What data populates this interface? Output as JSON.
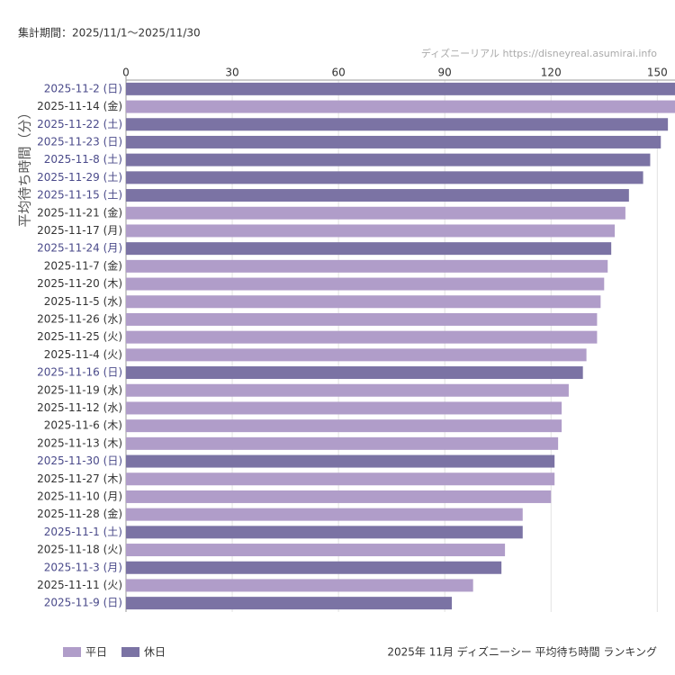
{
  "chart_data": {
    "type": "hbar",
    "period": "集計期間：2025/11/1〜2025/11/30",
    "credit": "ディズニーリアル https://disneyreal.asumirai.info",
    "title": "2025年 11月 ディズニーシー 平均待ち時間 ランキング",
    "y_label": "平均待ち時間（分）",
    "categories": [
      "2025-11-2 (日)",
      "2025-11-14 (金)",
      "2025-11-22 (土)",
      "2025-11-23 (日)",
      "2025-11-8 (土)",
      "2025-11-29 (土)",
      "2025-11-15 (土)",
      "2025-11-21 (金)",
      "2025-11-17 (月)",
      "2025-11-24 (月)",
      "2025-11-7 (金)",
      "2025-11-20 (木)",
      "2025-11-5 (水)",
      "2025-11-26 (水)",
      "2025-11-25 (火)",
      "2025-11-4 (火)",
      "2025-11-16 (日)",
      "2025-11-19 (水)",
      "2025-11-12 (水)",
      "2025-11-6 (木)",
      "2025-11-13 (木)",
      "2025-11-30 (日)",
      "2025-11-27 (木)",
      "2025-11-10 (月)",
      "2025-11-28 (金)",
      "2025-11-1 (土)",
      "2025-11-18 (火)",
      "2025-11-3 (月)",
      "2025-11-11 (火)",
      "2025-11-9 (日)"
    ],
    "series": [
      {
        "name": "平日",
        "color": "#b09dc9",
        "label_color": "#333333",
        "values": [
          null,
          156,
          null,
          null,
          null,
          null,
          null,
          141,
          138,
          null,
          136,
          135,
          134,
          133,
          133,
          130,
          null,
          125,
          123,
          123,
          122,
          null,
          121,
          120,
          112,
          null,
          107,
          null,
          98,
          null
        ]
      },
      {
        "name": "休日",
        "color": "#7b73a4",
        "label_color": "#4a4a8a",
        "values": [
          157,
          null,
          153,
          151,
          148,
          146,
          142,
          null,
          null,
          137,
          null,
          null,
          null,
          null,
          null,
          null,
          129,
          null,
          null,
          null,
          null,
          121,
          null,
          null,
          null,
          112,
          null,
          106,
          null,
          92
        ]
      }
    ],
    "xlim": [
      0,
      155
    ],
    "xticks": [
      0,
      30,
      60,
      90,
      120,
      150
    ],
    "grid": true
  }
}
